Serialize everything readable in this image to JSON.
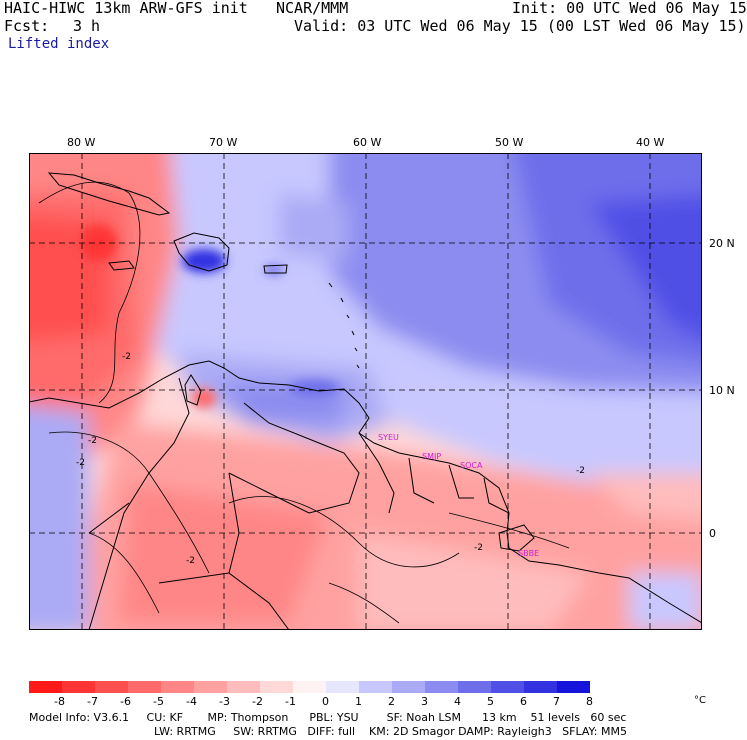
{
  "header": {
    "model": "HAIC-HIWC 13km ARW-GFS init",
    "center": "NCAR/MMM",
    "fcst_label": "Fcst:",
    "fcst_value": "3 h",
    "init": "Init: 00 UTC Wed 06 May 15",
    "valid": "Valid: 03 UTC Wed 06 May 15 (00 LST Wed 06 May 15)",
    "field": "Lifted index"
  },
  "lon_labels": [
    "80 W",
    "70 W",
    "60 W",
    "50 W",
    "40 W"
  ],
  "lat_labels": [
    "20 N",
    "10 N",
    "0"
  ],
  "stations": [
    "SYEU",
    "SMJP",
    "SOCA",
    "SBBE"
  ],
  "contour_labels": [
    "-2",
    "-2",
    "-2",
    "-2",
    "-2",
    "-2"
  ],
  "colorbar": {
    "labels": [
      "-8",
      "-7",
      "-6",
      "-5",
      "-4",
      "-3",
      "-2",
      "-1",
      "0",
      "1",
      "2",
      "3",
      "4",
      "5",
      "6",
      "7",
      "8"
    ],
    "unit": "°C",
    "colors": [
      "#ff1a1a",
      "#ff3535",
      "#ff5050",
      "#ff6b6b",
      "#ff8686",
      "#ffa1a1",
      "#ffbcbc",
      "#ffd8d8",
      "#fff2f2",
      "#e6e6ff",
      "#c8c8ff",
      "#aaaaf5",
      "#8c8cf0",
      "#6e6eeb",
      "#5050e6",
      "#3232e1",
      "#1414dc"
    ]
  },
  "footer": {
    "line1": "Model Info: V3.6.1     CU: KF       MP: Thompson      PBL: YSU        SF: Noah LSM      13 km    51 levels   60 sec",
    "line2": "LW: RRTMG     SW: RRTMG   DIFF: full    KM: 2D Smagor DAMP: Rayleigh3   SFLAY: MM5"
  }
}
